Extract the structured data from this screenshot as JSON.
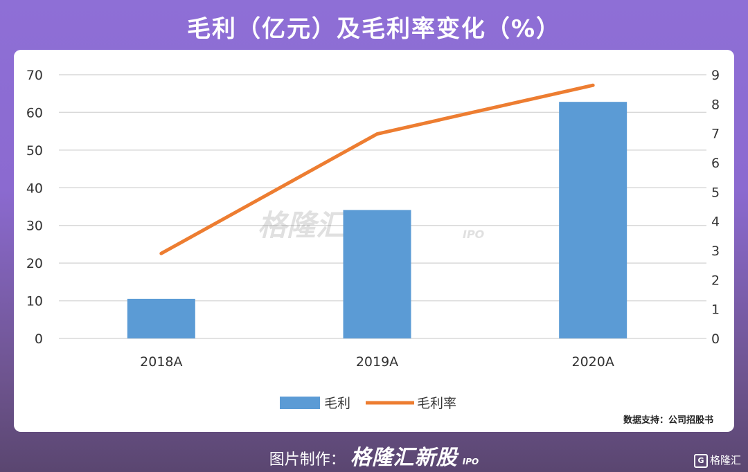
{
  "title": "毛利（亿元）及毛利率变化（%）",
  "source": "数据支持：公司招股书",
  "footer": {
    "label": "图片制作：",
    "brand": "格隆汇新股",
    "brand_sub": "IPO"
  },
  "watermark": {
    "text": "格隆汇新股",
    "sub": "IPO"
  },
  "corner_logo": {
    "icon": "G",
    "text": "格隆汇"
  },
  "colors": {
    "bar": "#5b9bd5",
    "line": "#ed7d31"
  },
  "chart_data": {
    "type": "bar",
    "categories": [
      "2018A",
      "2019A",
      "2020A"
    ],
    "series": [
      {
        "name": "毛利",
        "type": "bar",
        "axis": "left",
        "values": [
          10.5,
          34.1,
          62.8
        ]
      },
      {
        "name": "毛利率",
        "type": "line",
        "axis": "right",
        "values": [
          2.9,
          6.98,
          8.64
        ]
      }
    ],
    "ylim_left": [
      0,
      70
    ],
    "yticks_left": [
      "0",
      "10",
      "20",
      "30",
      "40",
      "50",
      "60",
      "70"
    ],
    "ylim_right": [
      0,
      9
    ],
    "yticks_right": [
      "0",
      "1",
      "2",
      "3",
      "4",
      "5",
      "6",
      "7",
      "8",
      "9"
    ],
    "grid": true,
    "legend_position": "bottom"
  }
}
